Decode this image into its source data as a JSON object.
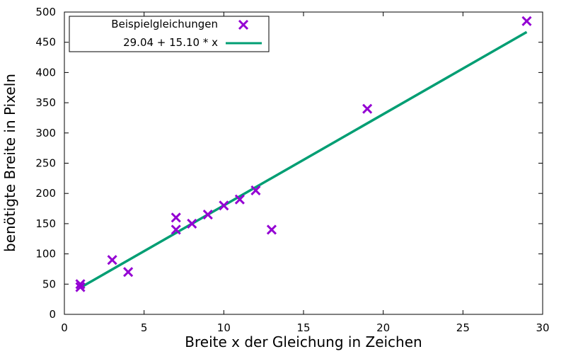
{
  "chart_data": {
    "type": "scatter",
    "xlabel": "Breite x der Gleichung in Zeichen",
    "ylabel": "benötigte Breite in Pixeln",
    "xlim": [
      0,
      30
    ],
    "ylim": [
      0,
      500
    ],
    "x_ticks": [
      "0",
      "5",
      "10",
      "15",
      "20",
      "25",
      "30"
    ],
    "y_ticks": [
      "0",
      "50",
      "100",
      "150",
      "200",
      "250",
      "300",
      "350",
      "400",
      "450",
      "500"
    ],
    "grid": false,
    "legend_position": "top-left",
    "series": [
      {
        "name": "Beispielgleichungen",
        "kind": "scatter",
        "marker": "x",
        "color": "#9400d3",
        "points": [
          {
            "x": 1,
            "y": 45
          },
          {
            "x": 1,
            "y": 50
          },
          {
            "x": 3,
            "y": 90
          },
          {
            "x": 4,
            "y": 70
          },
          {
            "x": 7,
            "y": 140
          },
          {
            "x": 7,
            "y": 160
          },
          {
            "x": 8,
            "y": 150
          },
          {
            "x": 9,
            "y": 165
          },
          {
            "x": 10,
            "y": 180
          },
          {
            "x": 11,
            "y": 190
          },
          {
            "x": 12,
            "y": 205
          },
          {
            "x": 13,
            "y": 140
          },
          {
            "x": 19,
            "y": 340
          },
          {
            "x": 29,
            "y": 485
          }
        ]
      },
      {
        "name": "29.04 + 15.10 * x",
        "kind": "line",
        "color": "#009e73",
        "intercept": 29.04,
        "slope": 15.1,
        "x_range": [
          1,
          29
        ]
      }
    ]
  }
}
